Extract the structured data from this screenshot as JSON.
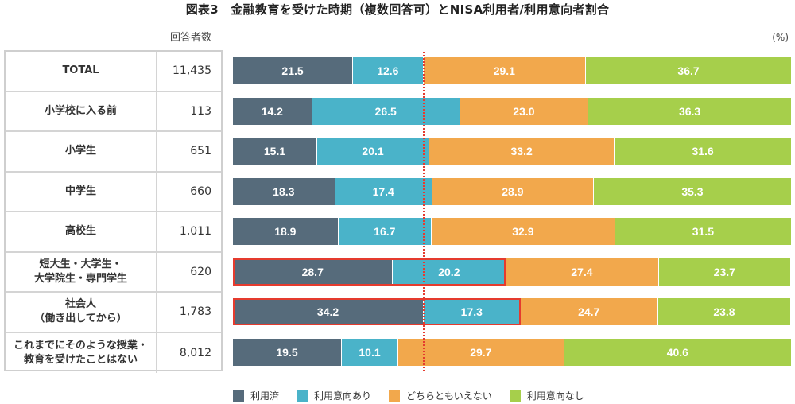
{
  "title": "図表3　金融教育を受けた時期（複数回答可）とNISA利用者/利用意向者割合",
  "count_header": "回答者数",
  "unit": "(%)",
  "colors": {
    "used": "#566b7b",
    "intend": "#4ab3c9",
    "neutral": "#f2a84c",
    "no_intent": "#a6cf4b",
    "highlight": "#e53b2e"
  },
  "chart_data": {
    "type": "bar",
    "orientation": "horizontal-stacked-100",
    "title": "図表3　金融教育を受けた時期（複数回答可）とNISA利用者/利用意向者割合",
    "unit": "(%)",
    "xlim": [
      0,
      100
    ],
    "reference_line": 34.2,
    "categories": [
      "TOTAL",
      "小学校に入る前",
      "小学生",
      "中学生",
      "高校生",
      "短大生・大学生・\n大学院生・専門学生",
      "社会人\n（働き出してから）",
      "これまでにそのような授業・\n教育を受けたことはない"
    ],
    "category_lines": [
      [
        "TOTAL"
      ],
      [
        "小学校に入る前"
      ],
      [
        "小学生"
      ],
      [
        "中学生"
      ],
      [
        "高校生"
      ],
      [
        "短大生・大学生・",
        "大学院生・専門学生"
      ],
      [
        "社会人",
        "（働き出してから）"
      ],
      [
        "これまでにそのような授業・",
        "教育を受けたことはない"
      ]
    ],
    "respondents": [
      "11,435",
      "113",
      "651",
      "660",
      "1,011",
      "620",
      "1,783",
      "8,012"
    ],
    "highlighted_rows": [
      5,
      6
    ],
    "series": [
      {
        "name": "利用済",
        "key": "used",
        "values": [
          21.5,
          14.2,
          15.1,
          18.3,
          18.9,
          28.7,
          34.2,
          19.5
        ]
      },
      {
        "name": "利用意向あり",
        "key": "intend",
        "values": [
          12.6,
          26.5,
          20.1,
          17.4,
          16.7,
          20.2,
          17.3,
          10.1
        ]
      },
      {
        "name": "どちらともいえない",
        "key": "neutral",
        "values": [
          29.1,
          23.0,
          33.2,
          28.9,
          32.9,
          27.4,
          24.7,
          29.7
        ]
      },
      {
        "name": "利用意向なし",
        "key": "no_intent",
        "values": [
          36.7,
          36.3,
          31.6,
          35.3,
          31.5,
          23.7,
          23.8,
          40.6
        ]
      }
    ],
    "legend": [
      "利用済",
      "利用意向あり",
      "どちらともいえない",
      "利用意向なし"
    ],
    "legend_position": "bottom"
  }
}
